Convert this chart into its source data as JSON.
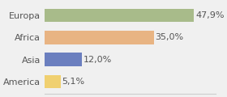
{
  "categories": [
    "Europa",
    "Africa",
    "Asia",
    "America"
  ],
  "values": [
    47.9,
    35.0,
    12.0,
    5.1
  ],
  "labels": [
    "47,9%",
    "35,0%",
    "12,0%",
    "5,1%"
  ],
  "bar_colors": [
    "#a8bb8a",
    "#e8b483",
    "#6b7fbf",
    "#f0d070"
  ],
  "xlim": [
    0,
    55
  ],
  "background_color": "#f0f0f0",
  "bar_height": 0.6,
  "label_fontsize": 8,
  "tick_fontsize": 8
}
